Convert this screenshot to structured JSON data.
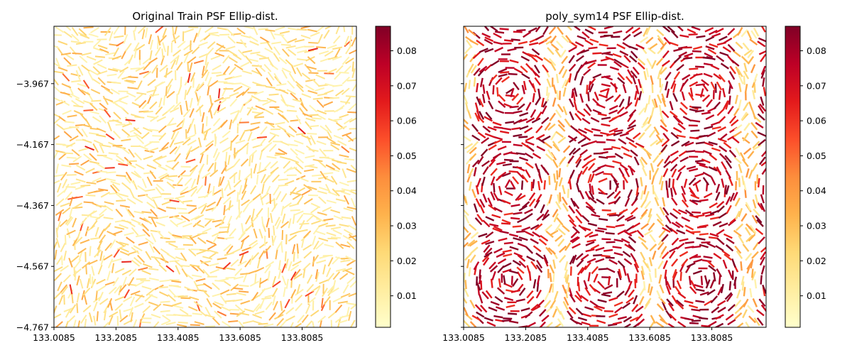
{
  "chart_data": [
    {
      "type": "quiver",
      "title": "Original Train PSF Ellip-dist.",
      "xlabel": "",
      "ylabel": "",
      "x_ticks": [
        "133.0085",
        "133.2085",
        "133.4085",
        "133.6085",
        "133.8085"
      ],
      "y_ticks": [
        "-3.967",
        "-4.167",
        "-4.367",
        "-4.567",
        "-4.767"
      ],
      "xlim": [
        133.0085,
        133.9835
      ],
      "ylim": [
        -4.767,
        -3.7786
      ],
      "colorbar": {
        "ticks": [
          "0.01",
          "0.02",
          "0.03",
          "0.04",
          "0.05",
          "0.06",
          "0.07",
          "0.08"
        ],
        "range": [
          0.001,
          0.087
        ],
        "colormap": "YlOrRd"
      },
      "field_pattern": "uniform",
      "mean_value": 0.02,
      "segment_count": 1600
    },
    {
      "type": "quiver",
      "title": "poly_sym14 PSF Ellip-dist.",
      "xlabel": "",
      "ylabel": "",
      "x_ticks": [
        "133.0085",
        "133.2085",
        "133.4085",
        "133.6085",
        "133.8085"
      ],
      "y_ticks": [
        "-3.967",
        "-4.167",
        "-4.367",
        "-4.567",
        "-4.767"
      ],
      "xlim": [
        133.0085,
        133.9835
      ],
      "ylim": [
        -4.767,
        -3.7786
      ],
      "colorbar": {
        "ticks": [
          "0.01",
          "0.02",
          "0.03",
          "0.04",
          "0.05",
          "0.06",
          "0.07",
          "0.08"
        ],
        "range": [
          0.001,
          0.087
        ],
        "colormap": "YlOrRd"
      },
      "field_pattern": "vortex-grid",
      "mean_value": 0.08,
      "segment_count": 1500
    }
  ],
  "colors": {
    "colormap_stops": [
      "#ffffcc",
      "#ffeda0",
      "#fed976",
      "#feb24c",
      "#fd8d3c",
      "#fc4e2a",
      "#e31a1c",
      "#bd0026",
      "#800026"
    ]
  }
}
